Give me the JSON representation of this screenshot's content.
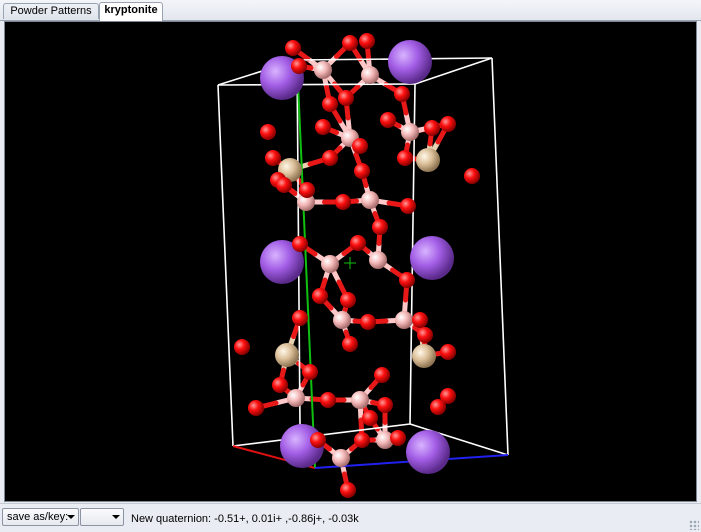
{
  "tabs": [
    {
      "label": "Powder Patterns",
      "active": false
    },
    {
      "label": "kryptonite",
      "active": true
    }
  ],
  "viewer": {
    "background": "#000000",
    "colors": {
      "oxygen": "#ff1a1a",
      "boron": "#ffb0b0",
      "silicon": "#e6c8a0",
      "large_cation": "#a05ae0",
      "axis_a": "#e01010",
      "axis_b": "#10c010",
      "axis_c": "#2020f0",
      "cell_edges": "#ffffff"
    }
  },
  "status": {
    "save_combo_label": "save as/key:",
    "second_combo_value": "",
    "message": "New quaternion: -0.51+, 0.01i+ ,-0.86j+, -0.03k"
  }
}
